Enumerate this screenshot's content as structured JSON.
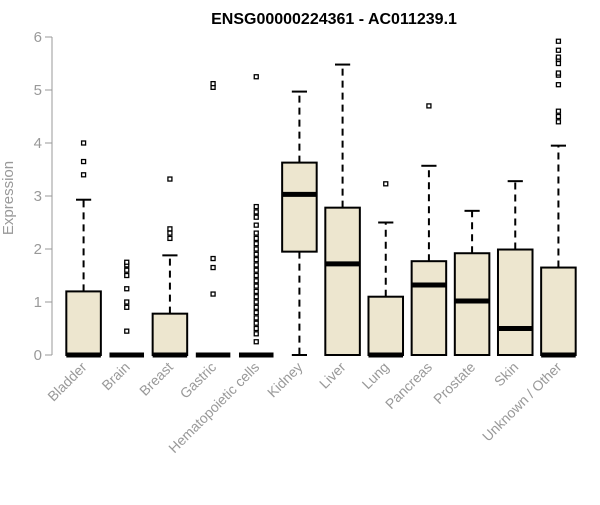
{
  "chart_data": {
    "type": "box",
    "title": "ENSG00000224361 - AC011239.1",
    "xlabel": "",
    "ylabel": "Expression",
    "ylim": [
      0,
      6
    ],
    "yticks": [
      0,
      1,
      2,
      3,
      4,
      5,
      6
    ],
    "grid": false,
    "colors": {
      "box_fill": "#ede6cf",
      "outline": "#000000",
      "axis": "#999999"
    },
    "categories": [
      "Bladder",
      "Brain",
      "Breast",
      "Gastric",
      "Hematopoietic cells",
      "Kidney",
      "Liver",
      "Lung",
      "Pancreas",
      "Prostate",
      "Skin",
      "Unknown / Other"
    ],
    "boxes": [
      {
        "q1": 0,
        "median": 0,
        "q3": 1.2,
        "whisker_low": 0,
        "whisker_high": 2.93,
        "outliers": [
          3.4,
          3.65,
          4.0
        ]
      },
      {
        "q1": 0,
        "median": 0,
        "q3": 0,
        "whisker_low": 0,
        "whisker_high": 0,
        "outliers": [
          0.45,
          0.9,
          1.0,
          1.25,
          1.5,
          1.6,
          1.7,
          1.75
        ]
      },
      {
        "q1": 0,
        "median": 0,
        "q3": 0.78,
        "whisker_low": 0,
        "whisker_high": 1.88,
        "outliers": [
          2.2,
          2.3,
          2.38,
          3.32
        ]
      },
      {
        "q1": 0,
        "median": 0,
        "q3": 0,
        "whisker_low": 0,
        "whisker_high": 0,
        "outliers": [
          1.15,
          1.65,
          1.82,
          5.05,
          5.12
        ]
      },
      {
        "q1": 0,
        "median": 0,
        "q3": 0,
        "whisker_low": 0,
        "whisker_high": 0,
        "outliers": [
          0.25,
          0.4,
          0.5,
          0.6,
          0.7,
          0.8,
          0.9,
          1.0,
          1.1,
          1.2,
          1.3,
          1.4,
          1.5,
          1.6,
          1.7,
          1.8,
          1.9,
          2.0,
          2.1,
          2.2,
          2.3,
          2.45,
          2.6,
          2.7,
          2.8,
          5.25
        ]
      },
      {
        "q1": 1.95,
        "median": 3.03,
        "q3": 3.63,
        "whisker_low": 0,
        "whisker_high": 4.97,
        "outliers": []
      },
      {
        "q1": 0,
        "median": 1.72,
        "q3": 2.78,
        "whisker_low": 0,
        "whisker_high": 5.48,
        "outliers": []
      },
      {
        "q1": 0,
        "median": 0,
        "q3": 1.1,
        "whisker_low": 0,
        "whisker_high": 2.5,
        "outliers": [
          3.23
        ]
      },
      {
        "q1": 0,
        "median": 1.32,
        "q3": 1.77,
        "whisker_low": 0,
        "whisker_high": 3.57,
        "outliers": [
          4.7
        ]
      },
      {
        "q1": 0,
        "median": 1.02,
        "q3": 1.92,
        "whisker_low": 0,
        "whisker_high": 2.72,
        "outliers": []
      },
      {
        "q1": 0,
        "median": 0.5,
        "q3": 1.99,
        "whisker_low": 0,
        "whisker_high": 3.28,
        "outliers": []
      },
      {
        "q1": 0,
        "median": 0,
        "q3": 1.65,
        "whisker_low": 0,
        "whisker_high": 3.95,
        "outliers": [
          4.4,
          4.5,
          4.6,
          5.1,
          5.28,
          5.32,
          5.5,
          5.58,
          5.62,
          5.75,
          5.92
        ]
      }
    ]
  }
}
